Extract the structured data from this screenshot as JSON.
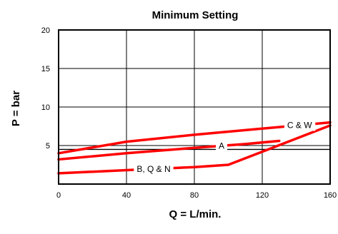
{
  "chart_data": {
    "type": "line",
    "title": "Minimum Setting",
    "xlabel": "Q = L/min.",
    "ylabel": "P = bar",
    "xlim": [
      0,
      160
    ],
    "ylim": [
      0,
      20
    ],
    "xticks": [
      0,
      40,
      80,
      120,
      160
    ],
    "yticks": [
      5,
      10,
      15,
      20
    ],
    "grid": true,
    "line_color": "#ff0000",
    "reference_line": {
      "y": 4.5,
      "color": "#000000"
    },
    "series": [
      {
        "name": "C & W",
        "x": [
          0,
          40,
          80,
          110,
          160
        ],
        "y": [
          4.0,
          5.5,
          6.4,
          7.0,
          8.0
        ]
      },
      {
        "name": "A",
        "x": [
          0,
          40,
          80,
          110,
          130
        ],
        "y": [
          3.2,
          4.0,
          4.7,
          5.2,
          5.6
        ]
      },
      {
        "name": "B, Q & N",
        "x": [
          0,
          40,
          80,
          100,
          160
        ],
        "y": [
          1.4,
          1.8,
          2.2,
          2.5,
          7.6
        ]
      }
    ]
  }
}
